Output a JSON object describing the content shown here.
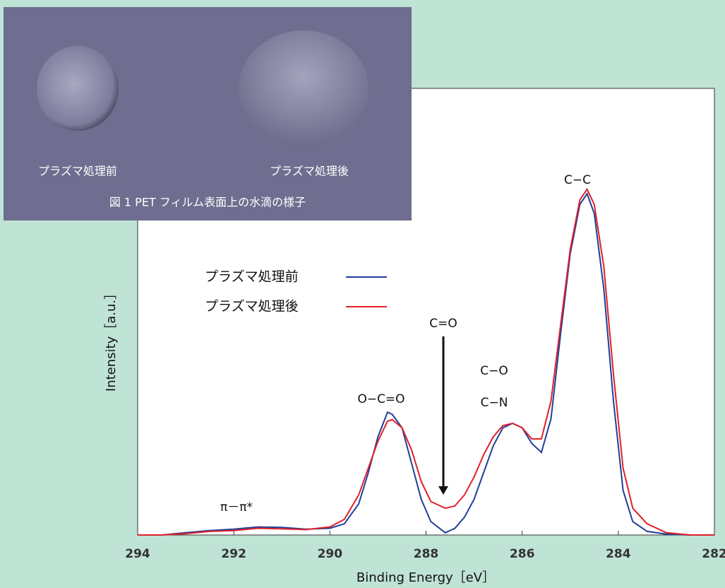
{
  "chart_data": {
    "type": "line",
    "x_label": "Binding Energy［eV］",
    "y_label": "Intensity［a.u.］",
    "xlim": [
      294,
      282
    ],
    "xticks": [
      294,
      292,
      290,
      288,
      286,
      284,
      282
    ],
    "ylim": [
      0,
      100
    ],
    "x": [
      294,
      293.5,
      293,
      292.5,
      292,
      291.5,
      291,
      290.5,
      290,
      289.7,
      289.4,
      289.2,
      289,
      288.8,
      288.7,
      288.5,
      288.3,
      288.1,
      287.9,
      287.6,
      287.4,
      287.2,
      287,
      286.8,
      286.6,
      286.4,
      286.2,
      286,
      285.8,
      285.6,
      285.4,
      285.2,
      285,
      284.8,
      284.65,
      284.5,
      284.3,
      284.1,
      283.9,
      283.7,
      283.4,
      283,
      282.5,
      282
    ],
    "series": [
      {
        "name": "プラズマ処理前",
        "color": "#1f3f99",
        "values": [
          0,
          0,
          0.5,
          1.0,
          1.3,
          1.8,
          1.7,
          1.3,
          1.5,
          2.5,
          7,
          14,
          22,
          27.5,
          27,
          24,
          16,
          8,
          3,
          0.5,
          1.5,
          4,
          8,
          14,
          20,
          24,
          25,
          24,
          20.5,
          18.5,
          26,
          45,
          63,
          74,
          76.4,
          72,
          55,
          30,
          10,
          3,
          0.8,
          0.2,
          0,
          0
        ]
      },
      {
        "name": "プラズマ処理後",
        "color": "#e0202a",
        "values": [
          0,
          0,
          0.3,
          0.8,
          1.0,
          1.5,
          1.4,
          1.2,
          1.8,
          3.5,
          9,
          15,
          21,
          25.5,
          25.8,
          24,
          19,
          12,
          7.5,
          6,
          6.5,
          9,
          13,
          18,
          22,
          24.5,
          25,
          24,
          21.5,
          21.5,
          30,
          47,
          64,
          75,
          77.4,
          74,
          60,
          36,
          15,
          6,
          2.5,
          0.5,
          0,
          0
        ]
      }
    ],
    "annotations": [
      "C−C",
      "C−O",
      "C−N",
      "O−C=O",
      "C=O",
      "π－π*"
    ]
  },
  "inset": {
    "labels": [
      "プラズマ処理前",
      "プラズマ処理後"
    ],
    "caption": "図 1 PET フィルム表面上の水滴の様子"
  }
}
